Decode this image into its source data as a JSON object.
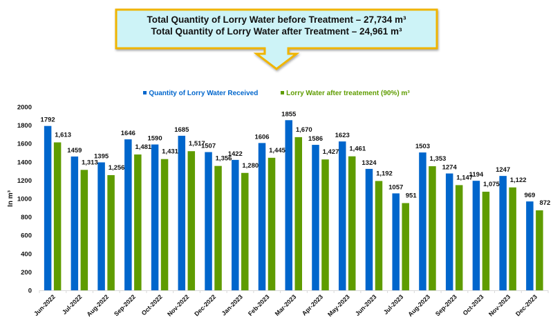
{
  "callout": {
    "line1": "Total Quantity of Lorry Water before Treatment – 27,734 m³",
    "line2": "Total Quantity of Lorry Water after Treatment – 24,961 m³",
    "fill_color": "#cdf3f7",
    "border_color": "#f0b400"
  },
  "chart_data": {
    "type": "bar",
    "title": "",
    "xlabel": "",
    "ylabel": "In m³",
    "ylim": [
      0,
      2000
    ],
    "yticks": [
      0,
      200,
      400,
      600,
      800,
      1000,
      1200,
      1400,
      1600,
      1800,
      2000
    ],
    "grid": false,
    "legend_position": "top-center",
    "categories": [
      "Jun-2022",
      "Jul-2022",
      "Aug-2022",
      "Sep-2022",
      "Oct-2022",
      "Nov-2022",
      "Dec-2022",
      "Jan-2023",
      "Feb-2023",
      "Mar-2023",
      "Apr-2023",
      "May-2023",
      "Jun-2023",
      "Jul-2023",
      "Aug-2023",
      "Sep-2023",
      "Oct-2023",
      "Nov-2023",
      "Dec-2023"
    ],
    "series": [
      {
        "name": "Quantity of Lorry Water Received",
        "color": "#0066cc",
        "values": [
          1792,
          1459,
          1395,
          1646,
          1590,
          1685,
          1507,
          1422,
          1606,
          1855,
          1586,
          1623,
          1324,
          1057,
          1503,
          1274,
          1194,
          1247,
          969
        ],
        "labels": [
          "1792",
          "1459",
          "1395",
          "1646",
          "1590",
          "1685",
          "1507",
          "1422",
          "1606",
          "1855",
          "1586",
          "1623",
          "1324",
          "1057",
          "1503",
          "1274",
          "1194",
          "1247",
          "969"
        ]
      },
      {
        "name": "Lorry Water after treatement (90%) m³",
        "color": "#5f9c00",
        "values": [
          1613,
          1313,
          1256,
          1481,
          1431,
          1517,
          1356,
          1280,
          1445,
          1670,
          1427,
          1461,
          1192,
          951,
          1353,
          1147,
          1075,
          1122,
          872
        ],
        "labels": [
          "1,613",
          "1,313",
          "1,256",
          "1,481",
          "1,431",
          "1,517",
          "1,356",
          "1,280",
          "1,445",
          "1,670",
          "1,427",
          "1,461",
          "1,192",
          "951",
          "1,353",
          "1,147",
          "1,075",
          "1,122",
          "872"
        ]
      }
    ]
  }
}
